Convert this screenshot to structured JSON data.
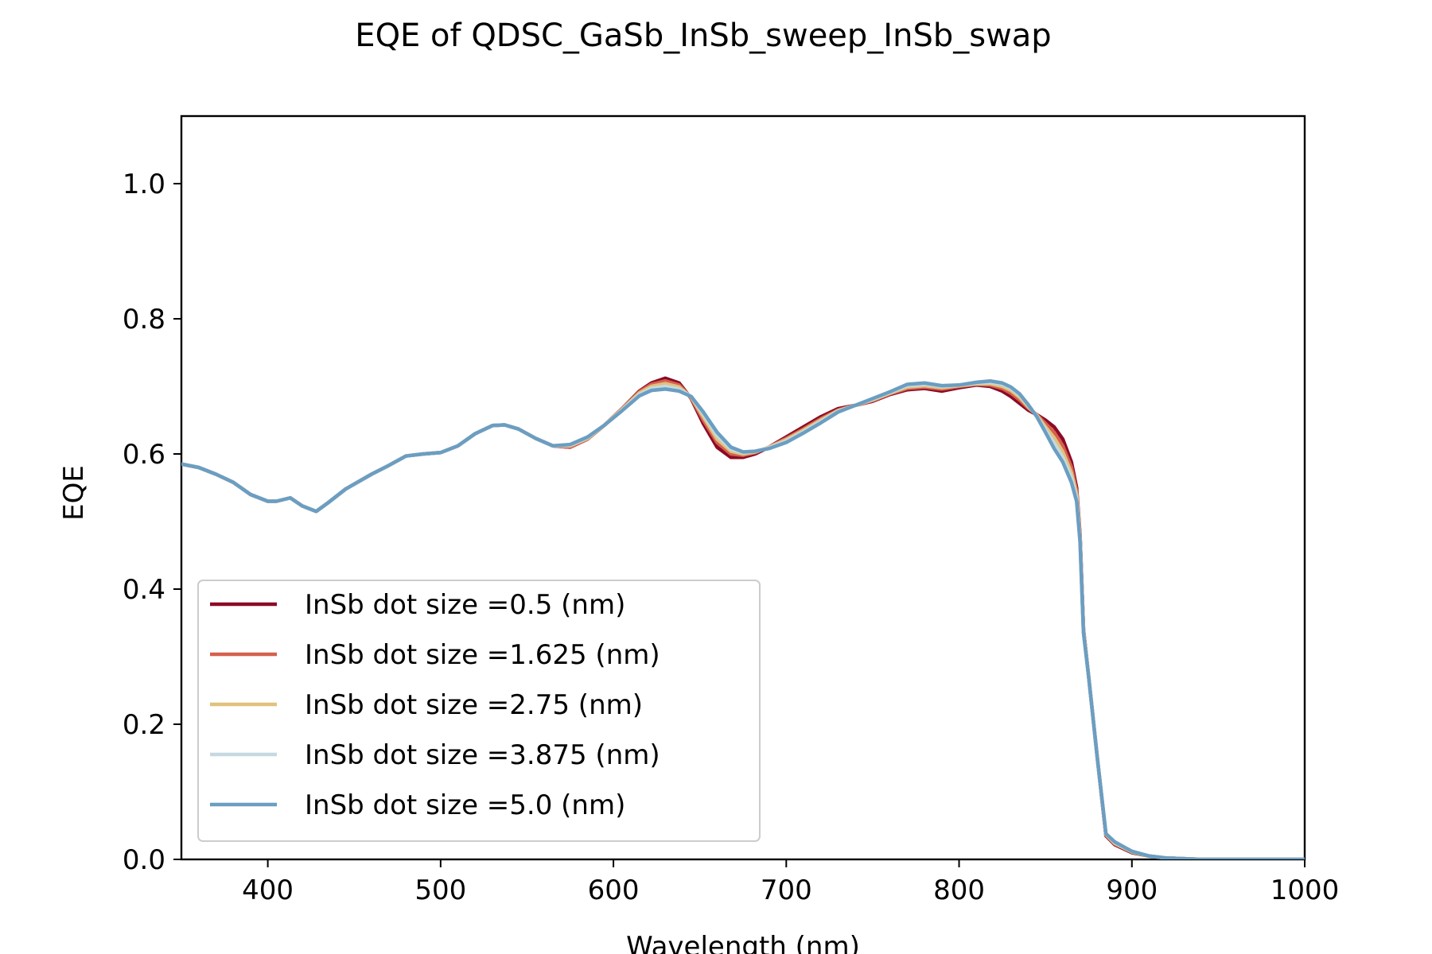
{
  "chart_data": {
    "type": "line",
    "title": "EQE of  QDSC_GaSb_InSb_sweep_InSb_swap",
    "xlabel": "Wavelength (nm)",
    "ylabel": "EQE",
    "xlim": [
      350,
      1000
    ],
    "ylim": [
      0,
      1.1
    ],
    "xticks": [
      400,
      500,
      600,
      700,
      800,
      900,
      1000
    ],
    "yticks": [
      0.0,
      0.2,
      0.4,
      0.6,
      0.8,
      1.0
    ],
    "xtick_labels": [
      "400",
      "500",
      "600",
      "700",
      "800",
      "900",
      "1000"
    ],
    "ytick_labels": [
      "0.0",
      "0.2",
      "0.4",
      "0.6",
      "0.8",
      "1.0"
    ],
    "grid": false,
    "legend_position": "lower-left",
    "series": [
      {
        "name": "InSb dot size =0.5 (nm)",
        "color": "#8b0a26",
        "x": [
          350,
          360,
          370,
          380,
          390,
          400,
          405,
          413,
          420,
          428,
          435,
          445,
          460,
          470,
          480,
          490,
          500,
          510,
          520,
          530,
          537,
          545,
          555,
          565,
          575,
          585,
          595,
          605,
          615,
          622,
          630,
          638,
          645,
          652,
          660,
          668,
          675,
          682,
          690,
          700,
          710,
          720,
          730,
          740,
          750,
          760,
          770,
          780,
          790,
          800,
          810,
          818,
          825,
          830,
          835,
          840,
          845,
          850,
          855,
          860,
          865,
          868,
          870,
          872,
          875,
          880,
          885,
          890,
          900,
          910,
          920,
          940,
          960,
          1000
        ],
        "y": [
          0.585,
          0.58,
          0.57,
          0.558,
          0.54,
          0.53,
          0.53,
          0.535,
          0.523,
          0.515,
          0.528,
          0.548,
          0.57,
          0.583,
          0.597,
          0.6,
          0.602,
          0.612,
          0.63,
          0.642,
          0.643,
          0.637,
          0.623,
          0.612,
          0.61,
          0.622,
          0.643,
          0.667,
          0.693,
          0.705,
          0.712,
          0.705,
          0.682,
          0.645,
          0.61,
          0.595,
          0.595,
          0.6,
          0.61,
          0.625,
          0.64,
          0.655,
          0.667,
          0.672,
          0.678,
          0.688,
          0.695,
          0.697,
          0.693,
          0.698,
          0.702,
          0.7,
          0.693,
          0.685,
          0.675,
          0.665,
          0.658,
          0.65,
          0.64,
          0.622,
          0.588,
          0.55,
          0.48,
          0.34,
          0.27,
          0.15,
          0.035,
          0.022,
          0.01,
          0.005,
          0.002,
          0.0,
          0.0,
          0.0
        ]
      },
      {
        "name": "InSb dot size =1.625 (nm)",
        "color": "#d6604d",
        "x": [
          350,
          360,
          370,
          380,
          390,
          400,
          405,
          413,
          420,
          428,
          435,
          445,
          460,
          470,
          480,
          490,
          500,
          510,
          520,
          530,
          537,
          545,
          555,
          565,
          575,
          585,
          595,
          605,
          615,
          622,
          630,
          638,
          645,
          652,
          660,
          668,
          675,
          682,
          690,
          700,
          710,
          720,
          730,
          740,
          750,
          760,
          770,
          780,
          790,
          800,
          810,
          818,
          825,
          830,
          835,
          840,
          845,
          850,
          855,
          860,
          865,
          868,
          870,
          872,
          875,
          880,
          885,
          890,
          900,
          910,
          920,
          940,
          960,
          1000
        ],
        "y": [
          0.585,
          0.58,
          0.57,
          0.558,
          0.54,
          0.53,
          0.53,
          0.535,
          0.523,
          0.515,
          0.528,
          0.548,
          0.57,
          0.583,
          0.597,
          0.6,
          0.602,
          0.612,
          0.63,
          0.642,
          0.643,
          0.637,
          0.623,
          0.612,
          0.61,
          0.622,
          0.643,
          0.667,
          0.692,
          0.703,
          0.708,
          0.702,
          0.683,
          0.65,
          0.617,
          0.6,
          0.598,
          0.602,
          0.61,
          0.623,
          0.637,
          0.652,
          0.665,
          0.672,
          0.679,
          0.689,
          0.697,
          0.699,
          0.696,
          0.7,
          0.703,
          0.702,
          0.697,
          0.69,
          0.68,
          0.668,
          0.658,
          0.645,
          0.632,
          0.612,
          0.58,
          0.545,
          0.478,
          0.34,
          0.27,
          0.15,
          0.036,
          0.023,
          0.011,
          0.005,
          0.002,
          0.0,
          0.0,
          0.0
        ]
      },
      {
        "name": "InSb dot size =2.75 (nm)",
        "color": "#e0c27c",
        "x": [
          350,
          360,
          370,
          380,
          390,
          400,
          405,
          413,
          420,
          428,
          435,
          445,
          460,
          470,
          480,
          490,
          500,
          510,
          520,
          530,
          537,
          545,
          555,
          565,
          575,
          585,
          595,
          605,
          615,
          622,
          630,
          638,
          645,
          652,
          660,
          668,
          675,
          682,
          690,
          700,
          710,
          720,
          730,
          740,
          750,
          760,
          770,
          780,
          790,
          800,
          810,
          818,
          825,
          830,
          835,
          840,
          845,
          850,
          855,
          860,
          865,
          868,
          870,
          872,
          875,
          880,
          885,
          890,
          900,
          910,
          920,
          940,
          960,
          1000
        ],
        "y": [
          0.585,
          0.58,
          0.57,
          0.558,
          0.54,
          0.53,
          0.53,
          0.535,
          0.523,
          0.515,
          0.528,
          0.548,
          0.57,
          0.583,
          0.597,
          0.6,
          0.602,
          0.612,
          0.63,
          0.642,
          0.643,
          0.637,
          0.623,
          0.612,
          0.612,
          0.623,
          0.643,
          0.666,
          0.69,
          0.7,
          0.704,
          0.699,
          0.684,
          0.655,
          0.622,
          0.604,
          0.6,
          0.603,
          0.61,
          0.621,
          0.635,
          0.65,
          0.664,
          0.672,
          0.68,
          0.69,
          0.699,
          0.701,
          0.698,
          0.701,
          0.704,
          0.704,
          0.7,
          0.694,
          0.684,
          0.67,
          0.657,
          0.64,
          0.624,
          0.603,
          0.572,
          0.54,
          0.475,
          0.338,
          0.27,
          0.15,
          0.037,
          0.024,
          0.011,
          0.005,
          0.002,
          0.0,
          0.0,
          0.0
        ]
      },
      {
        "name": "InSb dot size =3.875 (nm)",
        "color": "#c6d9e0",
        "x": [
          350,
          360,
          370,
          380,
          390,
          400,
          405,
          413,
          420,
          428,
          435,
          445,
          460,
          470,
          480,
          490,
          500,
          510,
          520,
          530,
          537,
          545,
          555,
          565,
          575,
          585,
          595,
          605,
          615,
          622,
          630,
          638,
          645,
          652,
          660,
          668,
          675,
          682,
          690,
          700,
          710,
          720,
          730,
          740,
          750,
          760,
          770,
          780,
          790,
          800,
          810,
          818,
          825,
          830,
          835,
          840,
          845,
          850,
          855,
          860,
          865,
          868,
          870,
          872,
          875,
          880,
          885,
          890,
          900,
          910,
          920,
          940,
          960,
          1000
        ],
        "y": [
          0.585,
          0.58,
          0.57,
          0.558,
          0.54,
          0.53,
          0.53,
          0.535,
          0.523,
          0.515,
          0.528,
          0.548,
          0.57,
          0.583,
          0.597,
          0.6,
          0.602,
          0.612,
          0.63,
          0.642,
          0.643,
          0.637,
          0.623,
          0.612,
          0.613,
          0.624,
          0.643,
          0.665,
          0.688,
          0.697,
          0.7,
          0.696,
          0.685,
          0.659,
          0.627,
          0.607,
          0.602,
          0.604,
          0.609,
          0.619,
          0.633,
          0.648,
          0.663,
          0.672,
          0.681,
          0.691,
          0.701,
          0.703,
          0.7,
          0.702,
          0.705,
          0.706,
          0.703,
          0.697,
          0.687,
          0.672,
          0.656,
          0.636,
          0.616,
          0.595,
          0.565,
          0.535,
          0.472,
          0.336,
          0.27,
          0.15,
          0.038,
          0.025,
          0.012,
          0.005,
          0.002,
          0.0,
          0.0,
          0.0
        ]
      },
      {
        "name": "InSb dot size =5.0 (nm)",
        "color": "#6a9ec2",
        "x": [
          350,
          360,
          370,
          380,
          390,
          400,
          405,
          413,
          420,
          428,
          435,
          445,
          460,
          470,
          480,
          490,
          500,
          510,
          520,
          530,
          537,
          545,
          555,
          565,
          575,
          585,
          595,
          605,
          615,
          622,
          630,
          638,
          645,
          652,
          660,
          668,
          675,
          682,
          690,
          700,
          710,
          720,
          730,
          740,
          750,
          760,
          770,
          780,
          790,
          800,
          810,
          818,
          825,
          830,
          835,
          840,
          845,
          850,
          855,
          860,
          865,
          868,
          870,
          872,
          875,
          880,
          885,
          890,
          900,
          910,
          920,
          940,
          960,
          1000
        ],
        "y": [
          0.585,
          0.58,
          0.57,
          0.558,
          0.54,
          0.53,
          0.53,
          0.535,
          0.523,
          0.515,
          0.528,
          0.548,
          0.57,
          0.583,
          0.597,
          0.6,
          0.602,
          0.612,
          0.63,
          0.642,
          0.643,
          0.637,
          0.623,
          0.612,
          0.614,
          0.625,
          0.643,
          0.664,
          0.686,
          0.694,
          0.696,
          0.693,
          0.685,
          0.662,
          0.632,
          0.61,
          0.603,
          0.604,
          0.608,
          0.617,
          0.631,
          0.646,
          0.662,
          0.672,
          0.682,
          0.692,
          0.703,
          0.705,
          0.701,
          0.702,
          0.706,
          0.708,
          0.705,
          0.699,
          0.689,
          0.673,
          0.655,
          0.632,
          0.608,
          0.588,
          0.558,
          0.53,
          0.47,
          0.335,
          0.27,
          0.15,
          0.038,
          0.026,
          0.012,
          0.005,
          0.002,
          0.0,
          0.0,
          0.0
        ]
      }
    ]
  }
}
